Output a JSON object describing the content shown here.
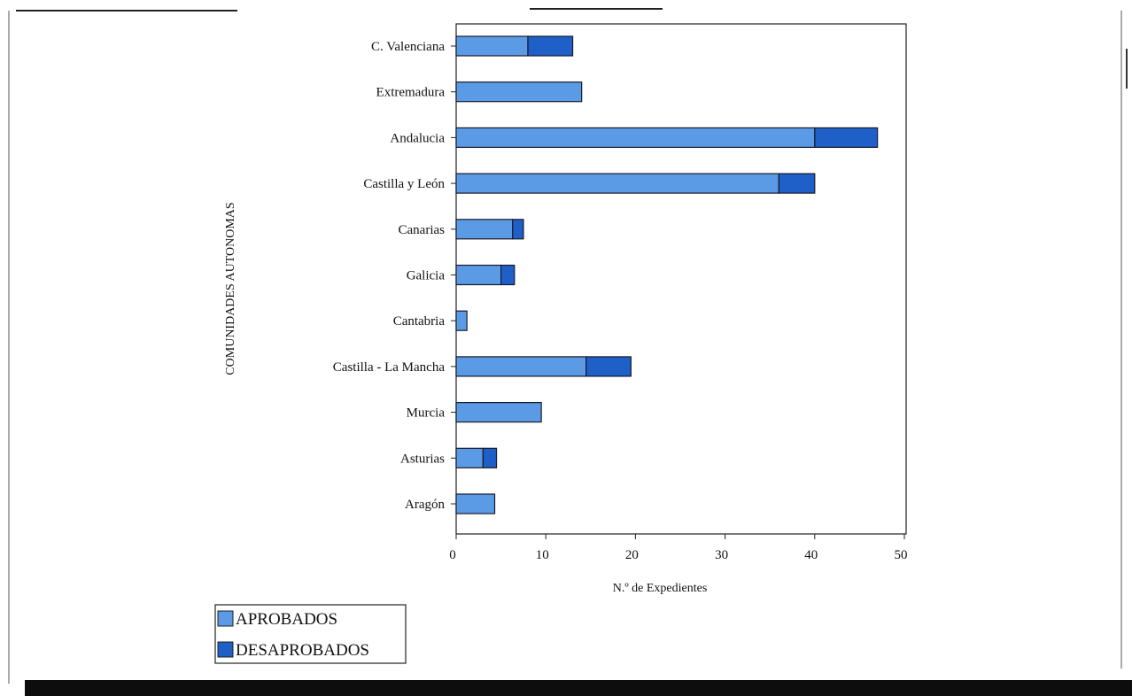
{
  "chart_data": {
    "type": "bar",
    "orientation": "horizontal",
    "stacked": true,
    "xlabel": "N.º de Expedientes",
    "ylabel": "COMUNIDADES AUTONOMAS",
    "xlim": [
      0,
      50
    ],
    "xticks": [
      "0",
      "10",
      "20",
      "30",
      "40",
      "50"
    ],
    "grid": false,
    "legend_position": "bottom-left",
    "categories": [
      "C. Valenciana",
      "Extremadura",
      "Andalucia",
      "Castilla y León",
      "Canarias",
      "Galicia",
      "Cantabria",
      "Castilla - La Mancha",
      "Murcia",
      "Asturias",
      "Aragón"
    ],
    "series": [
      {
        "name": "APROBADOS",
        "color": "#5b9be6",
        "values": [
          8,
          14,
          40,
          36,
          6.3,
          5,
          1.2,
          14.5,
          9.5,
          3,
          4.3
        ]
      },
      {
        "name": "DESAPROBADOS",
        "color": "#1e5fc8",
        "values": [
          5,
          0,
          7,
          4,
          1.2,
          1.5,
          0,
          5,
          0,
          1.5,
          0
        ]
      }
    ]
  }
}
